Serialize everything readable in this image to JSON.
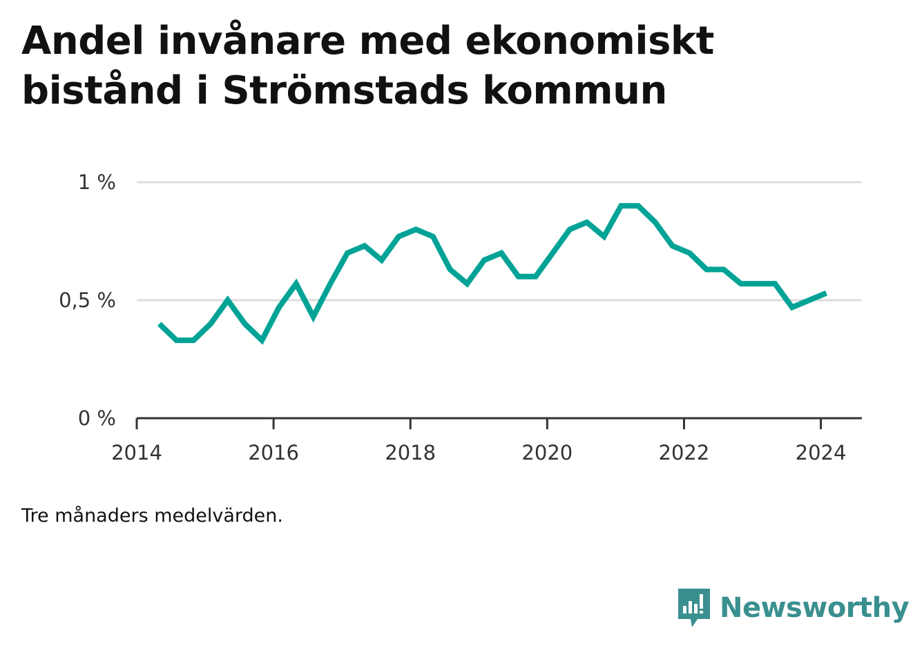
{
  "title": "Andel invånare med ekonomiskt bistånd i Strömstads kommun",
  "note": "Tre månaders medelvärden.",
  "brand": "Newsworthy",
  "colors": {
    "line": "#00a396",
    "grid": "#dddddd",
    "axis": "#333333",
    "brand": "#3a8f8f"
  },
  "chart_data": {
    "type": "line",
    "title": "Andel invånare med ekonomiskt bistånd i Strömstads kommun",
    "xlabel": "",
    "ylabel": "",
    "xlim": [
      2014,
      2024.6
    ],
    "ylim": [
      0,
      1
    ],
    "x_ticks": [
      2014,
      2016,
      2018,
      2020,
      2022,
      2024
    ],
    "x_tick_labels": [
      "2014",
      "2016",
      "2018",
      "2020",
      "2022",
      "2024"
    ],
    "y_ticks": [
      0,
      0.5,
      1
    ],
    "y_tick_labels": [
      "0 %",
      "0,5 %",
      "1 %"
    ],
    "grid": true,
    "legend": "none",
    "series": [
      {
        "x": [
          2014.33,
          2014.58,
          2014.83,
          2015.08,
          2015.33,
          2015.58,
          2015.83,
          2016.08,
          2016.33,
          2016.58,
          2016.83,
          2017.08,
          2017.33,
          2017.58,
          2017.83,
          2018.08,
          2018.33,
          2018.58,
          2018.83,
          2019.08,
          2019.33,
          2019.58,
          2019.83,
          2020.08,
          2020.33,
          2020.58,
          2020.83,
          2021.08,
          2021.33,
          2021.58,
          2021.83,
          2022.08,
          2022.33,
          2022.58,
          2022.83,
          2023.08,
          2023.33,
          2023.58,
          2023.83,
          2024.08
        ],
        "y": [
          0.4,
          0.33,
          0.33,
          0.4,
          0.5,
          0.4,
          0.33,
          0.47,
          0.57,
          0.43,
          0.57,
          0.7,
          0.73,
          0.67,
          0.77,
          0.8,
          0.77,
          0.63,
          0.57,
          0.67,
          0.7,
          0.6,
          0.6,
          0.7,
          0.8,
          0.83,
          0.77,
          0.9,
          0.9,
          0.83,
          0.73,
          0.7,
          0.63,
          0.63,
          0.57,
          0.57,
          0.57,
          0.47,
          0.5,
          0.53
        ]
      }
    ]
  }
}
